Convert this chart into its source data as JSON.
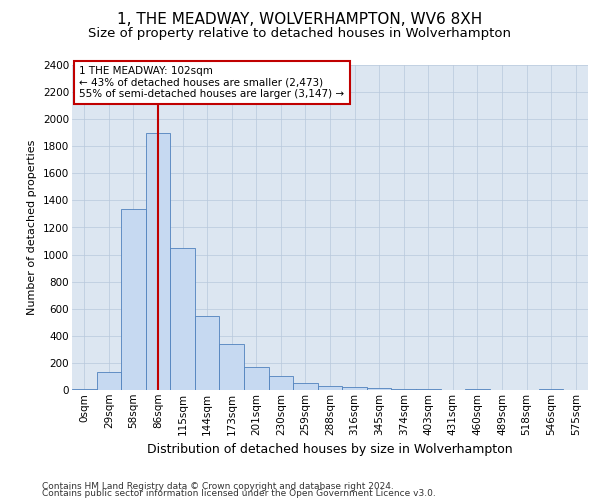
{
  "title_line1": "1, THE MEADWAY, WOLVERHAMPTON, WV6 8XH",
  "title_line2": "Size of property relative to detached houses in Wolverhampton",
  "xlabel": "Distribution of detached houses by size in Wolverhampton",
  "ylabel": "Number of detached properties",
  "footnote1": "Contains HM Land Registry data © Crown copyright and database right 2024.",
  "footnote2": "Contains public sector information licensed under the Open Government Licence v3.0.",
  "bar_labels": [
    "0sqm",
    "29sqm",
    "58sqm",
    "86sqm",
    "115sqm",
    "144sqm",
    "173sqm",
    "201sqm",
    "230sqm",
    "259sqm",
    "288sqm",
    "316sqm",
    "345sqm",
    "374sqm",
    "403sqm",
    "431sqm",
    "460sqm",
    "489sqm",
    "518sqm",
    "546sqm",
    "575sqm"
  ],
  "bar_heights": [
    10,
    130,
    1340,
    1900,
    1050,
    550,
    340,
    170,
    100,
    55,
    30,
    20,
    15,
    10,
    5,
    0,
    5,
    0,
    0,
    5,
    0
  ],
  "bar_color": "#c6d9f1",
  "bar_edge_color": "#4f81bd",
  "vline_x": 3.52,
  "vline_color": "#c00000",
  "annotation_text": "1 THE MEADWAY: 102sqm\n← 43% of detached houses are smaller (2,473)\n55% of semi-detached houses are larger (3,147) →",
  "annotation_box_color": "#ffffff",
  "annotation_box_edge_color": "#c00000",
  "ylim": [
    0,
    2400
  ],
  "yticks": [
    0,
    200,
    400,
    600,
    800,
    1000,
    1200,
    1400,
    1600,
    1800,
    2000,
    2200,
    2400
  ],
  "grid_color": "#b8c8dc",
  "plot_bg_color": "#dce6f1",
  "title_fontsize": 11,
  "subtitle_fontsize": 9.5,
  "xlabel_fontsize": 9,
  "ylabel_fontsize": 8,
  "tick_fontsize": 7.5,
  "annotation_fontsize": 7.5,
  "footnote_fontsize": 6.5
}
